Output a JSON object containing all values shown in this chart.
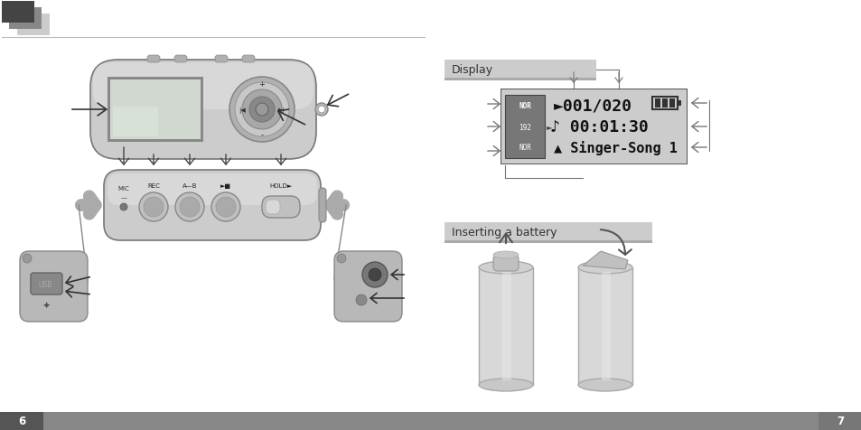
{
  "bg_color": "#ffffff",
  "device_body_color": "#cccccc",
  "device_edge_color": "#999999",
  "device_light": "#e0e0e0",
  "device_dark": "#888888",
  "screen_color": "#d8d8d8",
  "screen_inner": "#e8e8e8",
  "button_color": "#b8b8b8",
  "cap_color": "#b8b8b8",
  "section_bar_color": "#cccccc",
  "section_bar_dark": "#aaaaaa",
  "arrow_color": "#555555",
  "arrow_color2": "#333333",
  "display_bg": "#cccccc",
  "display_border": "#333333",
  "mode_box_bg": "#888888",
  "mode_box_text": "#ffffff",
  "display_text_color": "#111111",
  "footer_bg": "#888888",
  "footer_dark": "#555555",
  "footer_light": "#777777",
  "page_left": "6",
  "page_right": "7",
  "section1_label": "Display",
  "section2_label": "Inserting a battery",
  "display_line1": "►001/020",
  "display_line2": "♪ 00:01:30",
  "display_line3": "▲ Singer-Song 1",
  "mode_line1": "NOR",
  "mode_line2": "192",
  "mode_line3": "NOR",
  "btn_labels": [
    "REC",
    "A—B",
    "►■",
    "HOLD►"
  ],
  "mic_label": "MIC"
}
